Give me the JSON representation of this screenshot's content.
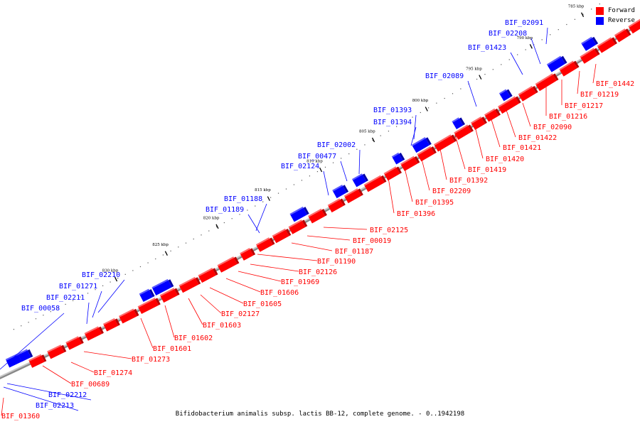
{
  "legend": {
    "forward_label": "Forward",
    "reverse_label": "Reverse",
    "forward_color": "#ff0000",
    "reverse_color": "#0000ff"
  },
  "caption": "Bifidobacterium animalis subsp. lactis BB-12, complete genome. - 0..1942198",
  "ticks": [
    "785 kbp",
    "790 kbp",
    "795 kbp",
    "800 kbp",
    "805 kbp",
    "810 kbp",
    "815 kbp",
    "820 kbp",
    "825 kbp",
    "830 kbp"
  ],
  "reverse_labels": [
    "BIF_02091",
    "BIF_02208",
    "BIF_01423",
    "BIF_02089",
    "BIF_01393",
    "BIF_01394",
    "BIF_02002",
    "BIF_00477",
    "BIF_02124",
    "BIF_01188",
    "BIF_01189",
    "BIF_02210",
    "BIF_01271",
    "BIF_02211",
    "BIF_00058",
    "BIF_02212",
    "BIF_02213"
  ],
  "forward_labels": [
    "BIF_01442",
    "BIF_01219",
    "BIF_01217",
    "BIF_01216",
    "BIF_02090",
    "BIF_01422",
    "BIF_01421",
    "BIF_01420",
    "BIF_01419",
    "BIF_01392",
    "BIF_02209",
    "BIF_01395",
    "BIF_01396",
    "BIF_02125",
    "BIF_00019",
    "BIF_01187",
    "BIF_01190",
    "BIF_02126",
    "BIF_01969",
    "BIF_01606",
    "BIF_01605",
    "BIF_02127",
    "BIF_01603",
    "BIF_01602",
    "BIF_01601",
    "BIF_01273",
    "BIF_01274",
    "BIF_00689",
    "BIF_01360"
  ]
}
